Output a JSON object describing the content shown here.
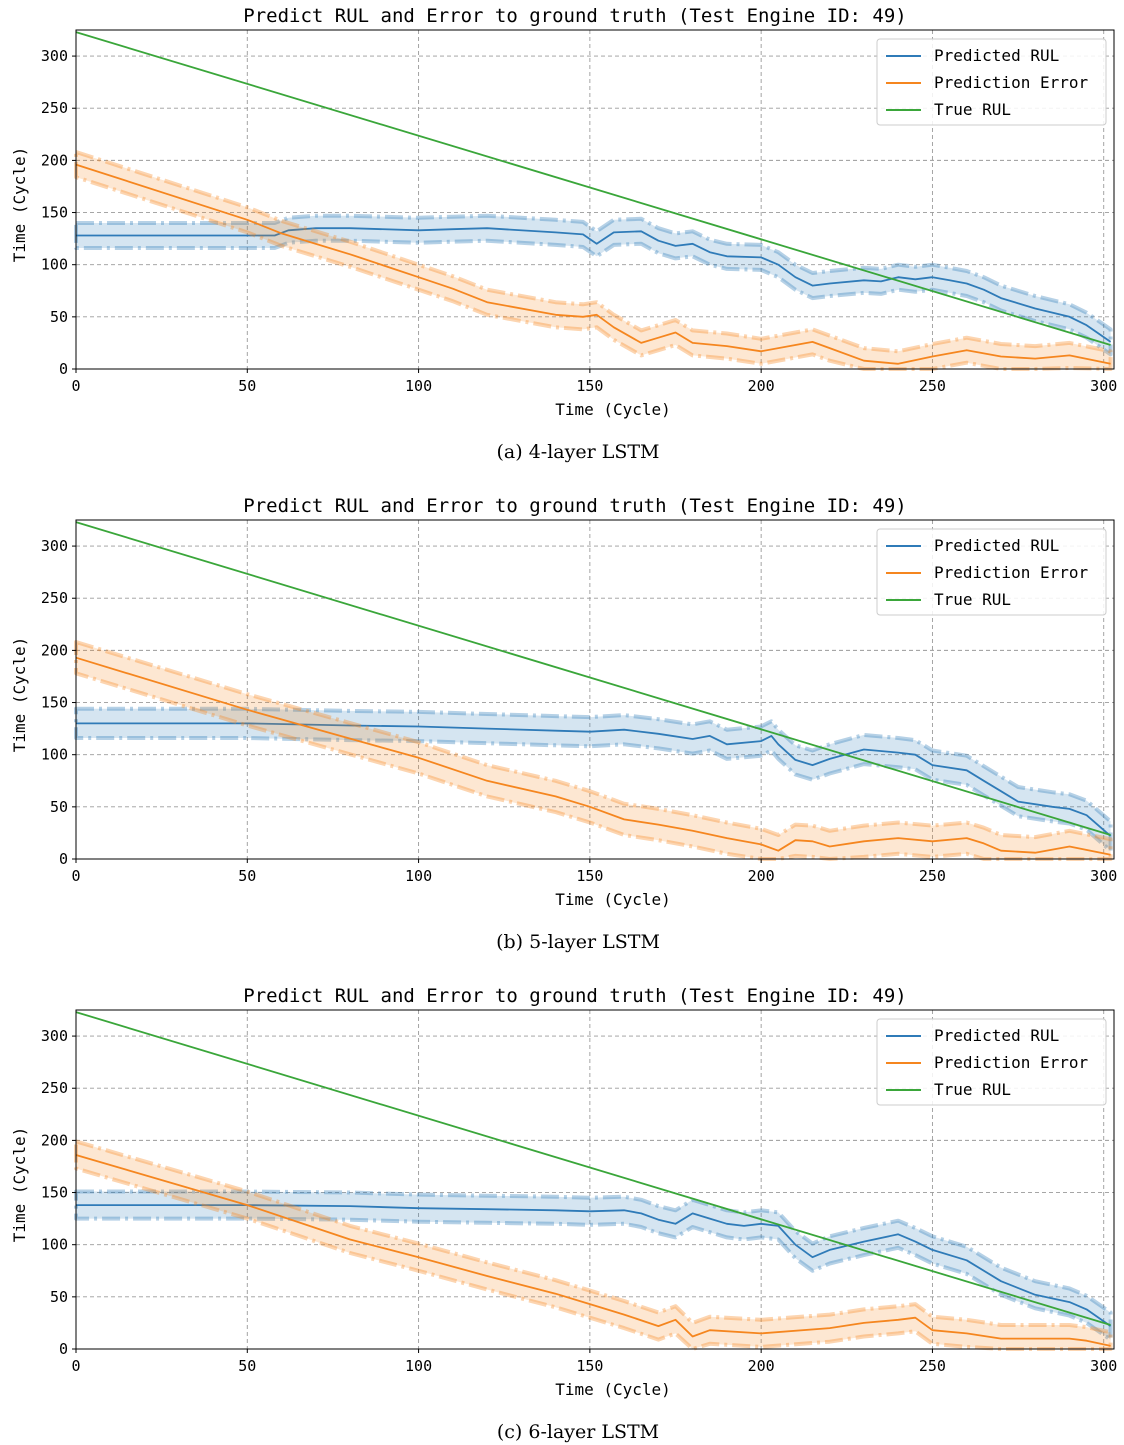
{
  "colors": {
    "predicted": "#2f7bb8",
    "error": "#f5861f",
    "true": "#3aa63a"
  },
  "chart_data": [
    {
      "type": "line",
      "title": "Predict RUL and Error to ground truth (Test Engine ID: 49)",
      "xlabel": "Time (Cycle)",
      "ylabel": "Time (Cycle)",
      "caption": "(a) 4-layer LSTM",
      "xlim": [
        0,
        303
      ],
      "ylim": [
        0,
        325
      ],
      "xticks": [
        0,
        50,
        100,
        150,
        200,
        250,
        300
      ],
      "yticks": [
        0,
        50,
        100,
        150,
        200,
        250,
        300
      ],
      "grid": true,
      "legend": "top-right",
      "series": [
        {
          "name": "Predicted RUL",
          "color": "predicted",
          "band": 12,
          "x": [
            0,
            50,
            58,
            62,
            70,
            80,
            100,
            110,
            120,
            140,
            148,
            152,
            157,
            165,
            170,
            175,
            180,
            185,
            190,
            200,
            205,
            210,
            215,
            220,
            230,
            235,
            240,
            245,
            250,
            255,
            260,
            265,
            270,
            280,
            290,
            295,
            302
          ],
          "y": [
            128,
            128,
            128,
            133,
            135,
            135,
            133,
            134,
            135,
            131,
            129,
            120,
            131,
            132,
            123,
            118,
            120,
            112,
            108,
            107,
            100,
            88,
            80,
            82,
            85,
            84,
            88,
            86,
            88,
            85,
            82,
            76,
            68,
            58,
            50,
            42,
            26
          ]
        },
        {
          "name": "Prediction Error",
          "color": "error",
          "band": 12,
          "x": [
            0,
            50,
            60,
            80,
            100,
            110,
            120,
            140,
            148,
            152,
            157,
            165,
            170,
            175,
            180,
            190,
            200,
            210,
            215,
            220,
            230,
            240,
            250,
            260,
            270,
            280,
            290,
            302
          ],
          "y": [
            196,
            143,
            130,
            110,
            88,
            77,
            64,
            52,
            50,
            52,
            40,
            25,
            30,
            35,
            25,
            22,
            17,
            23,
            26,
            20,
            8,
            5,
            12,
            18,
            12,
            10,
            13,
            5
          ]
        },
        {
          "name": "True RUL",
          "color": "true",
          "band": 0,
          "x": [
            0,
            302
          ],
          "y": [
            323,
            23
          ]
        }
      ]
    },
    {
      "type": "line",
      "title": "Predict RUL and Error to ground truth (Test Engine ID: 49)",
      "xlabel": "Time (Cycle)",
      "ylabel": "Time (Cycle)",
      "caption": "(b) 5-layer LSTM",
      "xlim": [
        0,
        303
      ],
      "ylim": [
        0,
        325
      ],
      "xticks": [
        0,
        50,
        100,
        150,
        200,
        250,
        300
      ],
      "yticks": [
        0,
        50,
        100,
        150,
        200,
        250,
        300
      ],
      "grid": true,
      "legend": "top-right",
      "series": [
        {
          "name": "Predicted RUL",
          "color": "predicted",
          "band": 14,
          "x": [
            0,
            50,
            80,
            100,
            120,
            140,
            150,
            160,
            170,
            180,
            185,
            190,
            200,
            203,
            205,
            210,
            215,
            220,
            230,
            240,
            245,
            250,
            260,
            265,
            270,
            275,
            285,
            290,
            295,
            302
          ],
          "y": [
            130,
            130,
            128,
            127,
            125,
            123,
            122,
            124,
            120,
            115,
            118,
            110,
            113,
            118,
            110,
            95,
            90,
            96,
            105,
            102,
            100,
            90,
            85,
            75,
            65,
            55,
            50,
            48,
            42,
            22
          ]
        },
        {
          "name": "Prediction Error",
          "color": "error",
          "band": 15,
          "x": [
            0,
            50,
            100,
            120,
            140,
            150,
            160,
            170,
            180,
            190,
            200,
            205,
            210,
            215,
            220,
            230,
            240,
            250,
            260,
            265,
            270,
            280,
            290,
            302
          ],
          "y": [
            193,
            143,
            97,
            75,
            60,
            50,
            38,
            33,
            27,
            20,
            14,
            8,
            18,
            17,
            12,
            17,
            20,
            17,
            20,
            15,
            8,
            6,
            12,
            4
          ]
        },
        {
          "name": "True RUL",
          "color": "true",
          "band": 0,
          "x": [
            0,
            302
          ],
          "y": [
            323,
            23
          ]
        }
      ]
    },
    {
      "type": "line",
      "title": "Predict RUL and Error to ground truth (Test Engine ID: 49)",
      "xlabel": "Time (Cycle)",
      "ylabel": "Time (Cycle)",
      "caption": "(c) 6-layer LSTM",
      "xlim": [
        0,
        303
      ],
      "ylim": [
        0,
        325
      ],
      "xticks": [
        0,
        50,
        100,
        150,
        200,
        250,
        300
      ],
      "yticks": [
        0,
        50,
        100,
        150,
        200,
        250,
        300
      ],
      "grid": true,
      "legend": "top-right",
      "series": [
        {
          "name": "Predicted RUL",
          "color": "predicted",
          "band": 13,
          "x": [
            0,
            50,
            80,
            100,
            120,
            140,
            150,
            160,
            165,
            170,
            175,
            180,
            185,
            190,
            195,
            200,
            205,
            210,
            215,
            220,
            230,
            240,
            245,
            250,
            260,
            270,
            280,
            290,
            295,
            302
          ],
          "y": [
            138,
            138,
            137,
            135,
            134,
            133,
            132,
            133,
            130,
            124,
            120,
            130,
            125,
            120,
            118,
            120,
            118,
            100,
            88,
            95,
            103,
            110,
            103,
            95,
            85,
            65,
            52,
            45,
            38,
            22
          ]
        },
        {
          "name": "Prediction Error",
          "color": "error",
          "band": 13,
          "x": [
            0,
            50,
            80,
            100,
            120,
            140,
            150,
            160,
            170,
            175,
            180,
            185,
            200,
            220,
            230,
            240,
            245,
            250,
            260,
            270,
            280,
            290,
            295,
            302
          ],
          "y": [
            186,
            138,
            105,
            88,
            70,
            53,
            43,
            33,
            22,
            28,
            12,
            18,
            15,
            20,
            25,
            28,
            30,
            18,
            15,
            10,
            10,
            10,
            8,
            3
          ]
        },
        {
          "name": "True RUL",
          "color": "true",
          "band": 0,
          "x": [
            0,
            302
          ],
          "y": [
            323,
            23
          ]
        }
      ]
    }
  ]
}
